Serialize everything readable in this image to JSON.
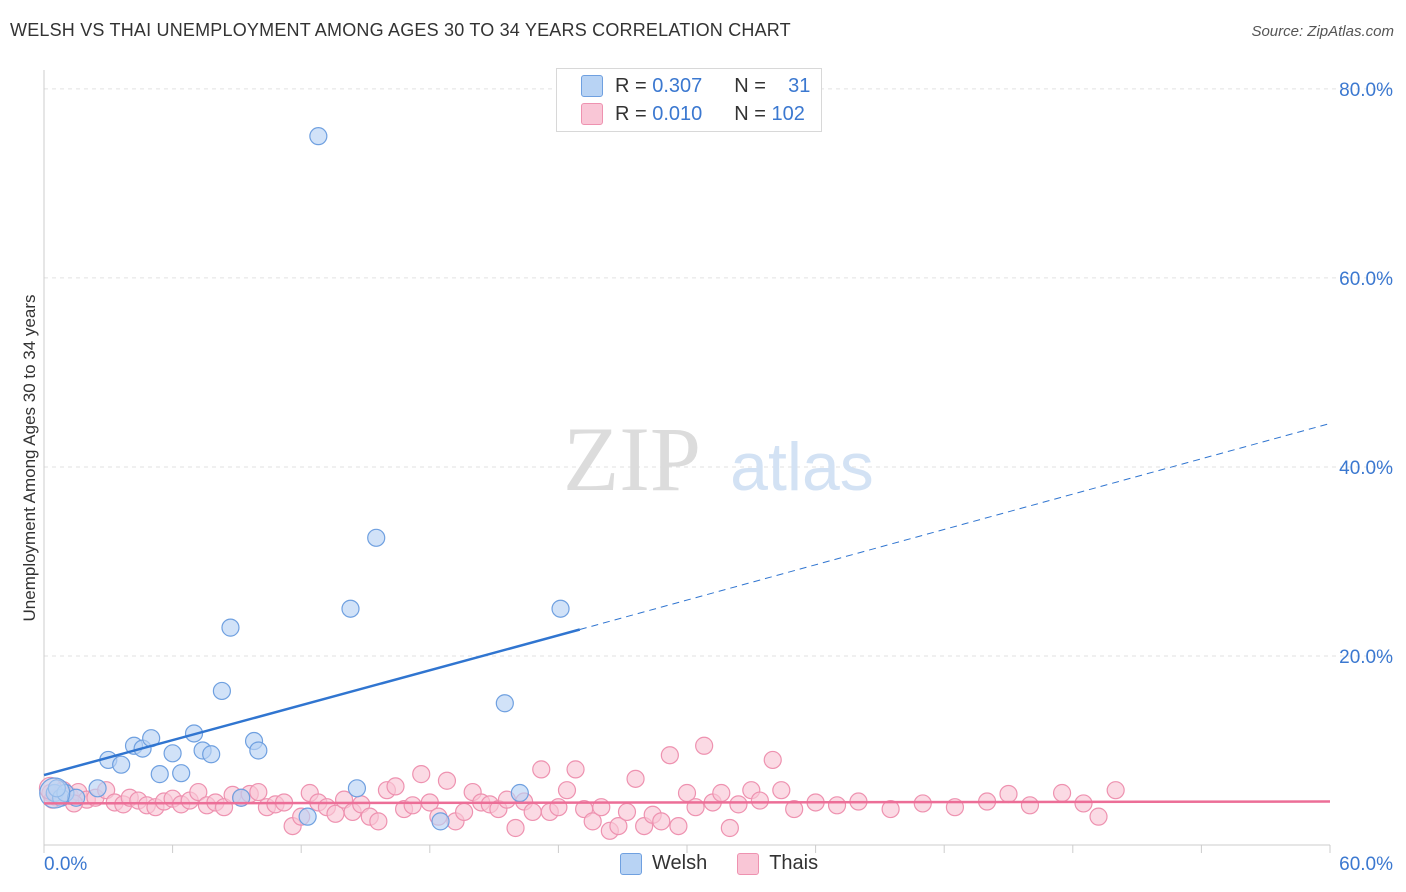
{
  "header": {
    "title": "WELSH VS THAI UNEMPLOYMENT AMONG AGES 30 TO 34 YEARS CORRELATION CHART",
    "source": "Source: ZipAtlas.com"
  },
  "watermark": {
    "zip": "ZIP",
    "atlas": "atlas"
  },
  "legend": {
    "r_label": "R =",
    "n_label": "N =",
    "welsh": {
      "r": "0.307",
      "n": "31"
    },
    "thais": {
      "r": "0.010",
      "n": "102"
    }
  },
  "colors": {
    "welsh_fill": "#b8d3f4",
    "welsh_stroke": "#6fa0e0",
    "welsh_line": "#3075d0",
    "thais_fill": "#f9c6d6",
    "thais_stroke": "#ee92b0",
    "thais_line": "#ec6e97",
    "tick_label": "#3b78d0",
    "grid": "#e2e2e2"
  },
  "chart_data": {
    "type": "scatter",
    "title": "WELSH VS THAI UNEMPLOYMENT AMONG AGES 30 TO 34 YEARS CORRELATION CHART",
    "xlabel": "",
    "ylabel": "Unemployment Among Ages 30 to 34 years",
    "xlim": [
      0,
      60
    ],
    "ylim": [
      0,
      82
    ],
    "x_tick_labels": [
      "0.0%",
      "60.0%"
    ],
    "y_ticks": [
      20,
      40,
      60,
      80
    ],
    "y_tick_labels": [
      "20.0%",
      "40.0%",
      "60.0%",
      "80.0%"
    ],
    "grid": true,
    "series": [
      {
        "name": "Welsh",
        "points": [
          [
            0.5,
            5.5
          ],
          [
            0.8,
            5.0
          ],
          [
            1.0,
            5.5
          ],
          [
            1.5,
            5.0
          ],
          [
            2.5,
            6.0
          ],
          [
            3.0,
            9.0
          ],
          [
            3.6,
            8.5
          ],
          [
            4.2,
            10.5
          ],
          [
            4.6,
            10.2
          ],
          [
            5.0,
            11.3
          ],
          [
            5.4,
            7.5
          ],
          [
            6.0,
            9.7
          ],
          [
            6.4,
            7.6
          ],
          [
            7.0,
            11.8
          ],
          [
            7.4,
            10.0
          ],
          [
            7.8,
            9.6
          ],
          [
            8.3,
            16.3
          ],
          [
            8.7,
            23.0
          ],
          [
            9.2,
            5.0
          ],
          [
            9.8,
            11.0
          ],
          [
            10.0,
            10.0
          ],
          [
            12.3,
            3.0
          ],
          [
            12.8,
            75.0
          ],
          [
            14.3,
            25.0
          ],
          [
            14.6,
            6.0
          ],
          [
            15.5,
            32.5
          ],
          [
            18.5,
            2.5
          ],
          [
            21.5,
            15.0
          ],
          [
            22.2,
            5.5
          ],
          [
            24.1,
            25.0
          ],
          [
            0.6,
            6.0
          ]
        ]
      },
      {
        "name": "Thais",
        "points": [
          [
            0.3,
            5.5
          ],
          [
            0.6,
            5.0
          ],
          [
            0.9,
            5.8
          ],
          [
            1.2,
            5.2
          ],
          [
            1.6,
            5.6
          ],
          [
            2.0,
            4.8
          ],
          [
            2.4,
            5.0
          ],
          [
            2.9,
            5.8
          ],
          [
            3.3,
            4.5
          ],
          [
            3.7,
            4.3
          ],
          [
            4.0,
            5.0
          ],
          [
            4.4,
            4.7
          ],
          [
            4.8,
            4.2
          ],
          [
            5.2,
            4.0
          ],
          [
            5.6,
            4.6
          ],
          [
            6.0,
            4.9
          ],
          [
            6.4,
            4.3
          ],
          [
            6.8,
            4.7
          ],
          [
            7.2,
            5.6
          ],
          [
            7.6,
            4.2
          ],
          [
            8.0,
            4.5
          ],
          [
            8.4,
            4.0
          ],
          [
            8.8,
            5.3
          ],
          [
            9.2,
            5.0
          ],
          [
            9.6,
            5.4
          ],
          [
            10.0,
            5.6
          ],
          [
            10.4,
            4.0
          ],
          [
            10.8,
            4.3
          ],
          [
            11.2,
            4.5
          ],
          [
            11.6,
            2.0
          ],
          [
            12.0,
            3.0
          ],
          [
            12.4,
            5.5
          ],
          [
            12.8,
            4.5
          ],
          [
            13.2,
            4.0
          ],
          [
            13.6,
            3.3
          ],
          [
            14.0,
            4.8
          ],
          [
            14.4,
            3.5
          ],
          [
            14.8,
            4.3
          ],
          [
            15.2,
            3.0
          ],
          [
            15.6,
            2.5
          ],
          [
            16.0,
            5.8
          ],
          [
            16.4,
            6.2
          ],
          [
            16.8,
            3.8
          ],
          [
            17.2,
            4.2
          ],
          [
            17.6,
            7.5
          ],
          [
            18.0,
            4.5
          ],
          [
            18.4,
            3.0
          ],
          [
            18.8,
            6.8
          ],
          [
            19.2,
            2.5
          ],
          [
            19.6,
            3.5
          ],
          [
            20.0,
            5.6
          ],
          [
            20.4,
            4.5
          ],
          [
            20.8,
            4.3
          ],
          [
            21.2,
            3.8
          ],
          [
            21.6,
            4.8
          ],
          [
            22.0,
            1.8
          ],
          [
            22.4,
            4.6
          ],
          [
            22.8,
            3.5
          ],
          [
            23.2,
            8.0
          ],
          [
            23.6,
            3.5
          ],
          [
            24.0,
            4.0
          ],
          [
            24.4,
            5.8
          ],
          [
            24.8,
            8.0
          ],
          [
            25.2,
            3.8
          ],
          [
            25.6,
            2.5
          ],
          [
            26.0,
            4.0
          ],
          [
            26.4,
            1.5
          ],
          [
            26.8,
            2.0
          ],
          [
            27.2,
            3.5
          ],
          [
            27.6,
            7.0
          ],
          [
            28.0,
            2.0
          ],
          [
            28.4,
            3.2
          ],
          [
            28.8,
            2.5
          ],
          [
            29.2,
            9.5
          ],
          [
            29.6,
            2.0
          ],
          [
            30.0,
            5.5
          ],
          [
            30.4,
            4.0
          ],
          [
            30.8,
            10.5
          ],
          [
            31.2,
            4.5
          ],
          [
            31.6,
            5.5
          ],
          [
            32.0,
            1.8
          ],
          [
            32.4,
            4.3
          ],
          [
            33.0,
            5.8
          ],
          [
            33.4,
            4.7
          ],
          [
            34.0,
            9.0
          ],
          [
            34.4,
            5.8
          ],
          [
            35.0,
            3.8
          ],
          [
            36.0,
            4.5
          ],
          [
            37.0,
            4.2
          ],
          [
            38.0,
            4.6
          ],
          [
            39.5,
            3.8
          ],
          [
            41.0,
            4.4
          ],
          [
            42.5,
            4.0
          ],
          [
            44.0,
            4.6
          ],
          [
            45.0,
            5.4
          ],
          [
            46.0,
            4.2
          ],
          [
            47.5,
            5.5
          ],
          [
            48.5,
            4.4
          ],
          [
            50.0,
            5.8
          ],
          [
            0.4,
            4.8
          ],
          [
            1.4,
            4.4
          ],
          [
            49.2,
            3.0
          ]
        ]
      }
    ],
    "trendlines": [
      {
        "series": "Welsh",
        "x": [
          0,
          25
        ],
        "y": [
          7.4,
          22.8
        ],
        "style": "solid"
      },
      {
        "series": "Welsh",
        "x": [
          25,
          60
        ],
        "y": [
          22.8,
          44.6
        ],
        "style": "dashed"
      },
      {
        "series": "Thais",
        "x": [
          0,
          60
        ],
        "y": [
          4.4,
          4.6
        ],
        "style": "solid"
      }
    ]
  }
}
